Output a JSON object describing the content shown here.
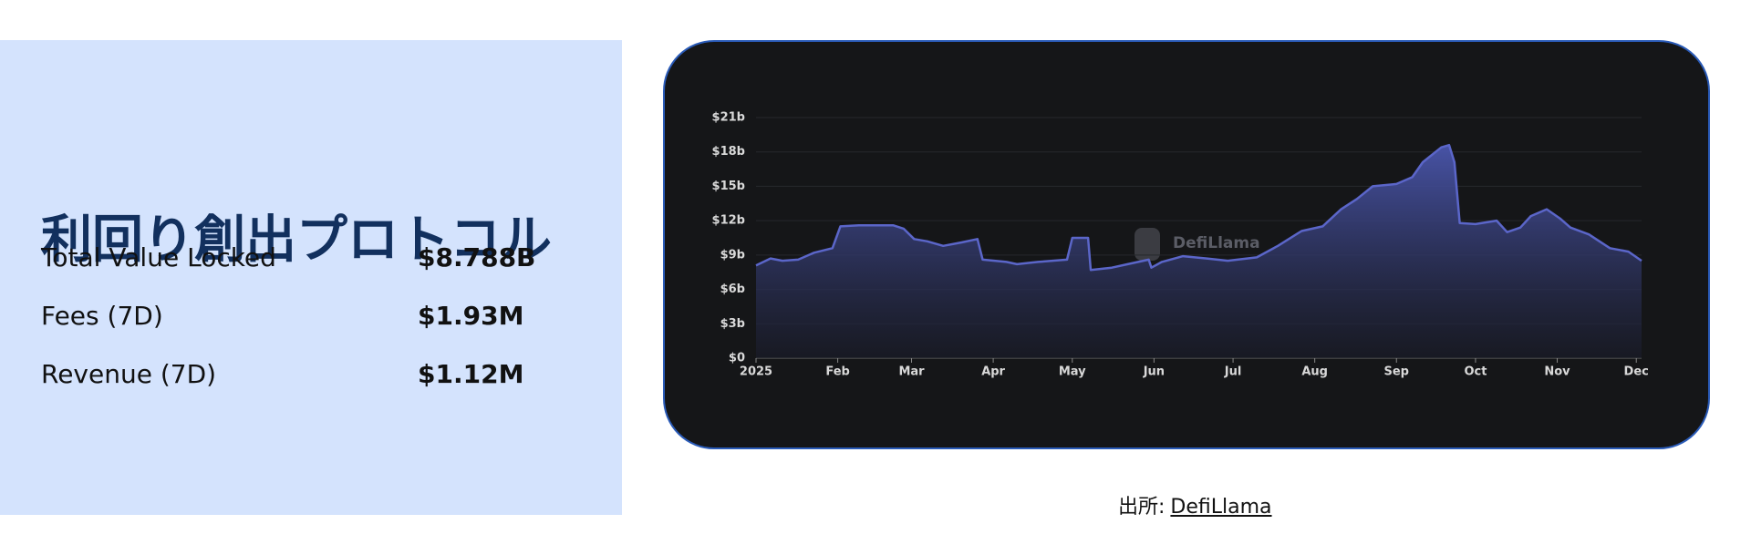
{
  "panel": {
    "title": "利回り創出プロトコル",
    "metrics": [
      {
        "label": "Total Value Locked",
        "value": "$8.788B"
      },
      {
        "label": "Fees (7D)",
        "value": "$1.93M"
      },
      {
        "label": "Revenue (7D)",
        "value": "$1.12M"
      }
    ]
  },
  "chart_data": {
    "type": "area",
    "watermark": "DefiLlama",
    "x": [
      0,
      5.5,
      10,
      16,
      22,
      29,
      32,
      39,
      52,
      56,
      60,
      65,
      71,
      78,
      84,
      86,
      95,
      99,
      107,
      118,
      120,
      126,
      127,
      135,
      141,
      149,
      150,
      154,
      162,
      171,
      179,
      190,
      198,
      207,
      215,
      222,
      228,
      234,
      243,
      249,
      253,
      260,
      263,
      265,
      267,
      273,
      281,
      285,
      290,
      294,
      300,
      305,
      309,
      316,
      324,
      331,
      336
    ],
    "series": [
      {
        "name": "TVL",
        "color": "#5b66c9",
        "values": [
          8.1,
          8.7,
          8.5,
          8.6,
          9.2,
          9.6,
          11.5,
          11.6,
          11.6,
          11.3,
          10.4,
          10.2,
          9.8,
          10.1,
          10.4,
          8.6,
          8.4,
          8.2,
          8.4,
          8.6,
          10.5,
          10.5,
          7.7,
          7.9,
          8.2,
          8.6,
          7.9,
          8.4,
          8.9,
          8.7,
          8.5,
          8.8,
          9.8,
          11.1,
          11.5,
          13.0,
          13.9,
          15.0,
          15.2,
          15.8,
          17.1,
          18.4,
          18.6,
          17.1,
          11.8,
          11.7,
          12.0,
          11.0,
          11.4,
          12.4,
          13.0,
          12.2,
          11.4,
          10.8,
          9.6,
          9.3,
          8.5
        ]
      }
    ],
    "xlim": [
      0,
      336
    ],
    "xticks": [
      {
        "value": 0,
        "label": "2025"
      },
      {
        "value": 31,
        "label": "Feb"
      },
      {
        "value": 59,
        "label": "Mar"
      },
      {
        "value": 90,
        "label": "Apr"
      },
      {
        "value": 120,
        "label": "May"
      },
      {
        "value": 151,
        "label": "Jun"
      },
      {
        "value": 181,
        "label": "Jul"
      },
      {
        "value": 212,
        "label": "Aug"
      },
      {
        "value": 243,
        "label": "Sep"
      },
      {
        "value": 273,
        "label": "Oct"
      },
      {
        "value": 304,
        "label": "Nov"
      },
      {
        "value": 334,
        "label": "Dec"
      }
    ],
    "ylim": [
      0,
      21
    ],
    "yticks": [
      {
        "value": 0,
        "label": "$0"
      },
      {
        "value": 3,
        "label": "$3b"
      },
      {
        "value": 6,
        "label": "$6b"
      },
      {
        "value": 9,
        "label": "$9b"
      },
      {
        "value": 12,
        "label": "$12b"
      },
      {
        "value": 15,
        "label": "$15b"
      },
      {
        "value": 18,
        "label": "$18b"
      },
      {
        "value": 21,
        "label": "$21b"
      }
    ],
    "grid": true
  },
  "source": {
    "prefix": "出所:",
    "link": "DefiLlama"
  }
}
